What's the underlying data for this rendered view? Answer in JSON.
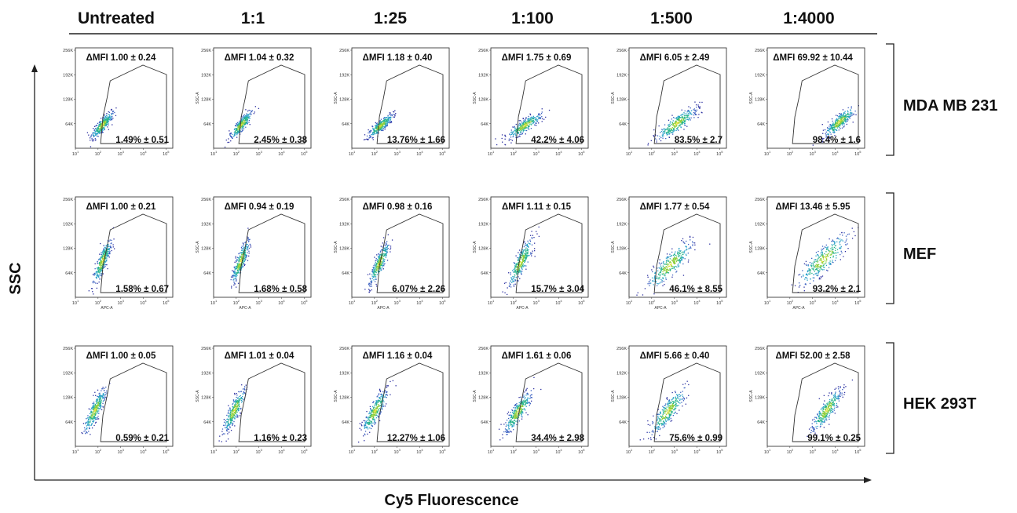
{
  "columns": [
    "Untreated",
    "1:1",
    "1:25",
    "1:100",
    "1:500",
    "1:4000"
  ],
  "rows": [
    "MDA MB 231",
    "MEF",
    "HEK 293T"
  ],
  "axes": {
    "y_title": "SSC",
    "x_title": "Cy5 Fluorescence"
  },
  "panel_axes": {
    "y_ticks": [
      "256K",
      "192K",
      "128K",
      "64K"
    ],
    "x_ticks": [
      "10",
      "10",
      "10",
      "10",
      "10"
    ],
    "x_tick_exp": [
      "1",
      "2",
      "3",
      "4",
      "5"
    ],
    "ylabel": "SSC-A",
    "xlabel": "APC-A"
  },
  "chart_data": {
    "type": "scatter",
    "title": "",
    "xlabel": "Cy5 Fluorescence",
    "ylabel": "SSC",
    "x_scale": "log",
    "xlim": [
      10,
      200000
    ],
    "ylim": [
      0,
      262144
    ],
    "columns": [
      "Untreated",
      "1:1",
      "1:25",
      "1:100",
      "1:500",
      "1:4000"
    ],
    "rows": [
      "MDA MB 231",
      "MEF",
      "HEK 293T"
    ],
    "panels": [
      {
        "row": "MDA MB 231",
        "column": "Untreated",
        "dmfi": "ΔMFI 1.00 ± 0.24",
        "gated": "1.49% ± 0.51",
        "center_x": 150,
        "center_y": 62000,
        "spread_x": 0.22,
        "spread_y": 17000
      },
      {
        "row": "MDA MB 231",
        "column": "1:1",
        "dmfi": "ΔMFI 1.04 ± 0.32",
        "gated": "2.45% ± 0.38",
        "center_x": 160,
        "center_y": 62000,
        "spread_x": 0.22,
        "spread_y": 17000
      },
      {
        "row": "MDA MB 231",
        "column": "1:25",
        "dmfi": "ΔMFI 1.18 ± 0.40",
        "gated": "13.76% ± 1.66",
        "center_x": 180,
        "center_y": 60000,
        "spread_x": 0.25,
        "spread_y": 15000
      },
      {
        "row": "MDA MB 231",
        "column": "1:100",
        "dmfi": "ΔMFI 1.75 ± 0.69",
        "gated": "42.2% ± 4.06",
        "center_x": 300,
        "center_y": 60000,
        "spread_x": 0.35,
        "spread_y": 16000
      },
      {
        "row": "MDA MB 231",
        "column": "1:500",
        "dmfi": "ΔMFI 6.05 ± 2.49",
        "gated": "83.5% ± 2.7",
        "center_x": 1200,
        "center_y": 65000,
        "spread_x": 0.4,
        "spread_y": 20000
      },
      {
        "row": "MDA MB 231",
        "column": "1:4000",
        "dmfi": "ΔMFI 69.92 ± 10.44",
        "gated": "98.4% ± 1.6",
        "center_x": 15000,
        "center_y": 70000,
        "spread_x": 0.3,
        "spread_y": 19000
      },
      {
        "row": "MEF",
        "column": "Untreated",
        "dmfi": "ΔMFI 1.00 ± 0.21",
        "gated": "1.58% ± 0.67",
        "center_x": 150,
        "center_y": 95000,
        "spread_x": 0.18,
        "spread_y": 28000
      },
      {
        "row": "MEF",
        "column": "1:1",
        "dmfi": "ΔMFI 0.94 ± 0.19",
        "gated": "1.68% ± 0.58",
        "center_x": 150,
        "center_y": 95000,
        "spread_x": 0.18,
        "spread_y": 28000
      },
      {
        "row": "MEF",
        "column": "1:25",
        "dmfi": "ΔMFI 0.98 ± 0.16",
        "gated": "6.07% ± 2.26",
        "center_x": 160,
        "center_y": 90000,
        "spread_x": 0.2,
        "spread_y": 28000
      },
      {
        "row": "MEF",
        "column": "1:100",
        "dmfi": "ΔMFI 1.11 ± 0.15",
        "gated": "15.7% ± 3.04",
        "center_x": 200,
        "center_y": 92000,
        "spread_x": 0.25,
        "spread_y": 30000
      },
      {
        "row": "MEF",
        "column": "1:500",
        "dmfi": "ΔMFI 1.77 ± 0.54",
        "gated": "46.1% ± 8.55",
        "center_x": 600,
        "center_y": 85000,
        "spread_x": 0.45,
        "spread_y": 30000
      },
      {
        "row": "MEF",
        "column": "1:4000",
        "dmfi": "ΔMFI 13.46 ± 5.95",
        "gated": "93.2% ± 2.1",
        "center_x": 3000,
        "center_y": 100000,
        "spread_x": 0.5,
        "spread_y": 32000
      },
      {
        "row": "HEK 293T",
        "column": "Untreated",
        "dmfi": "ΔMFI 1.00 ± 0.05",
        "gated": "0.59% ± 0.21",
        "center_x": 70,
        "center_y": 95000,
        "spread_x": 0.22,
        "spread_y": 28000
      },
      {
        "row": "HEK 293T",
        "column": "1:1",
        "dmfi": "ΔMFI 1.01 ± 0.04",
        "gated": "1.16% ± 0.23",
        "center_x": 80,
        "center_y": 95000,
        "spread_x": 0.22,
        "spread_y": 28000
      },
      {
        "row": "HEK 293T",
        "column": "1:25",
        "dmfi": "ΔMFI 1.16 ± 0.04",
        "gated": "12.27% ± 1.06",
        "center_x": 100,
        "center_y": 92000,
        "spread_x": 0.25,
        "spread_y": 28000
      },
      {
        "row": "HEK 293T",
        "column": "1:100",
        "dmfi": "ΔMFI 1.61 ± 0.06",
        "gated": "34.4% ± 2.98",
        "center_x": 150,
        "center_y": 90000,
        "spread_x": 0.28,
        "spread_y": 27000
      },
      {
        "row": "HEK 293T",
        "column": "1:500",
        "dmfi": "ΔMFI 5.66 ± 0.40",
        "gated": "75.6% ± 0.99",
        "center_x": 500,
        "center_y": 92000,
        "spread_x": 0.35,
        "spread_y": 28000
      },
      {
        "row": "HEK 293T",
        "column": "1:4000",
        "dmfi": "ΔMFI 52.00 ± 2.58",
        "gated": "99.1% ± 0.25",
        "center_x": 4000,
        "center_y": 95000,
        "spread_x": 0.3,
        "spread_y": 27000
      }
    ]
  }
}
